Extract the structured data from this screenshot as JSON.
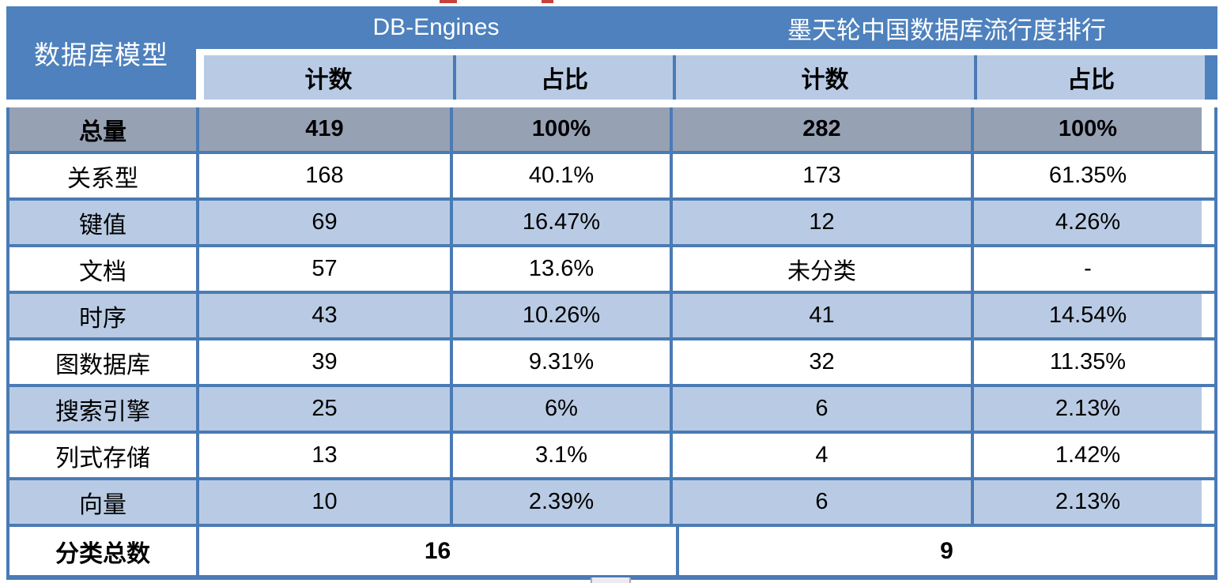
{
  "chart_data": {
    "type": "table",
    "corner_header": "数据库模型",
    "column_groups": [
      {
        "label": "DB-Engines",
        "subcolumns": [
          "计数",
          "占比"
        ]
      },
      {
        "label": "墨天轮中国数据库流行度排行",
        "subcolumns": [
          "计数",
          "占比"
        ]
      }
    ],
    "rows": [
      {
        "label": "总量",
        "values": [
          "419",
          "100%",
          "282",
          "100%"
        ],
        "emphasis": true
      },
      {
        "label": "关系型",
        "values": [
          "168",
          "40.1%",
          "173",
          "61.35%"
        ],
        "emphasis": false
      },
      {
        "label": "键值",
        "values": [
          "69",
          "16.47%",
          "12",
          "4.26%"
        ],
        "emphasis": false
      },
      {
        "label": "文档",
        "values": [
          "57",
          "13.6%",
          "未分类",
          "-"
        ],
        "emphasis": false
      },
      {
        "label": "时序",
        "values": [
          "43",
          "10.26%",
          "41",
          "14.54%"
        ],
        "emphasis": false
      },
      {
        "label": "图数据库",
        "values": [
          "39",
          "9.31%",
          "32",
          "11.35%"
        ],
        "emphasis": false
      },
      {
        "label": "搜索引擎",
        "values": [
          "25",
          "6%",
          "6",
          "2.13%"
        ],
        "emphasis": false
      },
      {
        "label": "列式存储",
        "values": [
          "13",
          "3.1%",
          "4",
          "1.42%"
        ],
        "emphasis": false
      },
      {
        "label": "向量",
        "values": [
          "10",
          "2.39%",
          "6",
          "2.13%"
        ],
        "emphasis": false
      }
    ],
    "footer": {
      "label": "分类总数",
      "values": [
        "16",
        "9"
      ]
    }
  },
  "colors": {
    "header_blue": "#4e81bd",
    "subheader_light_blue": "#b9cbe4",
    "total_row_gray": "#97a1b4",
    "grid_blue": "#4a7bb5",
    "body_text": "#000000",
    "header_text": "#ffffff",
    "cropped_text_red": "#c9413a"
  }
}
